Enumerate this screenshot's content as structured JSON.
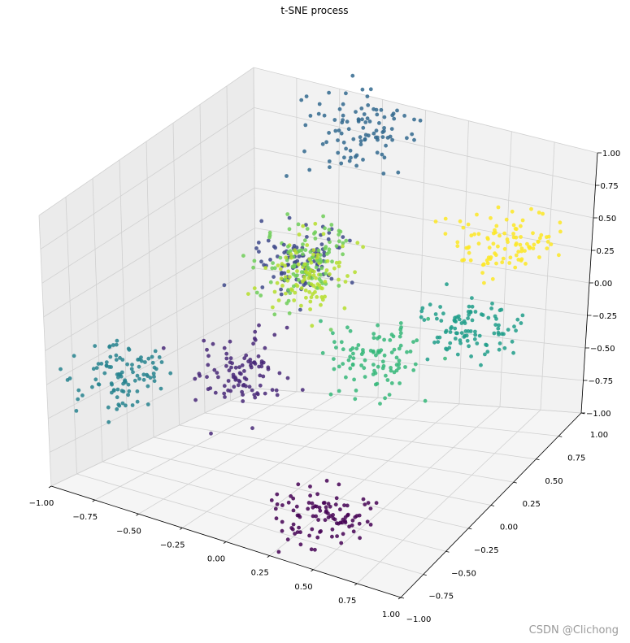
{
  "chart_data": {
    "type": "scatter",
    "projection": "3d",
    "title": "t-SNE process",
    "xlabel": "",
    "ylabel": "",
    "zlabel": "",
    "xlim": [
      -1.0,
      1.0
    ],
    "ylim": [
      -1.0,
      1.0
    ],
    "zlim": [
      -1.0,
      1.0
    ],
    "x_ticks": [
      "−1.00",
      "−0.75",
      "−0.50",
      "−0.25",
      "0.00",
      "0.25",
      "0.50",
      "0.75",
      "1.00"
    ],
    "y_ticks": [
      "−1.00",
      "−0.75",
      "−0.50",
      "−0.25",
      "0.00",
      "0.25",
      "0.50",
      "0.75",
      "1.00"
    ],
    "z_ticks": [
      "−1.00",
      "−0.75",
      "−0.50",
      "−0.25",
      "0.00",
      "0.25",
      "0.50",
      "0.75",
      "1.00"
    ],
    "grid": true,
    "colormap": "viridis",
    "clusters": [
      {
        "color": "#440154",
        "center": [
          0.3,
          -0.55,
          -0.95
        ],
        "spread": [
          0.14,
          0.14,
          0.05
        ]
      },
      {
        "color": "#482878",
        "center": [
          -0.45,
          0.0,
          -0.45
        ],
        "spread": [
          0.11,
          0.11,
          0.11
        ]
      },
      {
        "color": "#3e4989",
        "center": [
          -0.45,
          0.5,
          0.1
        ],
        "spread": [
          0.11,
          0.11,
          0.11
        ]
      },
      {
        "color": "#31688e",
        "center": [
          -0.35,
          0.95,
          0.8
        ],
        "spread": [
          0.14,
          0.14,
          0.1
        ]
      },
      {
        "color": "#26828e",
        "center": [
          -0.85,
          -0.5,
          -0.35
        ],
        "spread": [
          0.11,
          0.14,
          0.12
        ]
      },
      {
        "color": "#1f9e89",
        "center": [
          0.6,
          0.45,
          -0.15
        ],
        "spread": [
          0.13,
          0.13,
          0.1
        ]
      },
      {
        "color": "#35b779",
        "center": [
          0.3,
          0.05,
          -0.2
        ],
        "spread": [
          0.12,
          0.12,
          0.1
        ]
      },
      {
        "color": "#6ece58",
        "center": [
          -0.3,
          0.35,
          0.2
        ],
        "spread": [
          0.1,
          0.12,
          0.12
        ]
      },
      {
        "color": "#b5de2b",
        "center": [
          -0.2,
          0.2,
          0.15
        ],
        "spread": [
          0.1,
          0.12,
          0.12
        ]
      },
      {
        "color": "#fde725",
        "center": [
          0.55,
          0.9,
          0.25
        ],
        "spread": [
          0.12,
          0.12,
          0.1
        ]
      }
    ]
  },
  "watermark": "CSDN @Clichong"
}
